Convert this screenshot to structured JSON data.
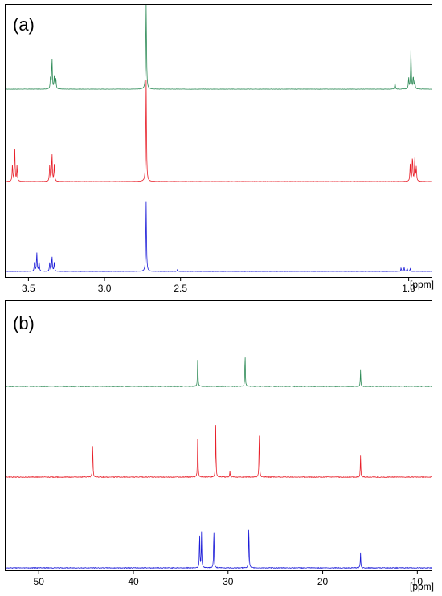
{
  "colors": {
    "green": "#2e8b57",
    "red": "#e8202a",
    "blue": "#1c1cd8",
    "frame": "#000000"
  },
  "chart_data": [
    {
      "type": "line",
      "panel": "(a)",
      "xunit": "[ppm]",
      "xlim": [
        3.65,
        0.85
      ],
      "x_reversed": true,
      "xticks": [
        3.5,
        3.0,
        2.5,
        1.0
      ],
      "xtick_labels": [
        "3.5",
        "3.0",
        "2.5",
        "1.0"
      ],
      "series": [
        {
          "color": "green",
          "peaks": [
            {
              "x": 3.345,
              "h": 0.55
            },
            {
              "x": 3.33,
              "h": 0.22
            },
            {
              "x": 3.32,
              "h": 0.2
            },
            {
              "x": 3.355,
              "h": 0.22
            },
            {
              "x": 2.726,
              "h": 1.7
            },
            {
              "x": 1.09,
              "h": 0.12
            },
            {
              "x": 0.985,
              "h": 0.7
            },
            {
              "x": 0.97,
              "h": 0.22
            },
            {
              "x": 1.0,
              "h": 0.2
            },
            {
              "x": 0.96,
              "h": 0.15
            }
          ]
        },
        {
          "color": "red",
          "peaks": [
            {
              "x": 3.59,
              "h": 0.6
            },
            {
              "x": 3.605,
              "h": 0.3
            },
            {
              "x": 3.575,
              "h": 0.28
            },
            {
              "x": 3.345,
              "h": 0.5
            },
            {
              "x": 3.33,
              "h": 0.3
            },
            {
              "x": 3.36,
              "h": 0.3
            },
            {
              "x": 2.726,
              "h": 1.8
            },
            {
              "x": 0.975,
              "h": 0.45
            },
            {
              "x": 0.96,
              "h": 0.4
            },
            {
              "x": 0.99,
              "h": 0.3
            },
            {
              "x": 0.95,
              "h": 0.25
            }
          ]
        },
        {
          "color": "blue",
          "peaks": [
            {
              "x": 3.445,
              "h": 0.33
            },
            {
              "x": 3.46,
              "h": 0.18
            },
            {
              "x": 3.43,
              "h": 0.18
            },
            {
              "x": 3.345,
              "h": 0.27
            },
            {
              "x": 3.33,
              "h": 0.16
            },
            {
              "x": 3.36,
              "h": 0.16
            },
            {
              "x": 2.726,
              "h": 1.25
            },
            {
              "x": 2.52,
              "h": 0.03
            },
            {
              "x": 1.05,
              "h": 0.06
            },
            {
              "x": 1.03,
              "h": 0.07
            },
            {
              "x": 1.01,
              "h": 0.06
            },
            {
              "x": 0.99,
              "h": 0.05
            }
          ]
        }
      ]
    },
    {
      "type": "line",
      "panel": "(b)",
      "xunit": "[ppm]",
      "xlim": [
        53.5,
        8.5
      ],
      "x_reversed": true,
      "xticks": [
        50,
        40,
        30,
        20,
        10
      ],
      "xtick_labels": [
        "50",
        "40",
        "30",
        "20",
        "10"
      ],
      "series": [
        {
          "color": "green",
          "peaks": [
            {
              "x": 33.2,
              "h": 0.38
            },
            {
              "x": 28.2,
              "h": 0.42
            },
            {
              "x": 16.0,
              "h": 0.2
            }
          ]
        },
        {
          "color": "red",
          "peaks": [
            {
              "x": 44.3,
              "h": 0.45
            },
            {
              "x": 33.2,
              "h": 0.56
            },
            {
              "x": 31.3,
              "h": 0.65
            },
            {
              "x": 29.8,
              "h": 0.08
            },
            {
              "x": 26.7,
              "h": 0.6
            },
            {
              "x": 16.0,
              "h": 0.27
            }
          ]
        },
        {
          "color": "blue",
          "peaks": [
            {
              "x": 33.0,
              "h": 0.46
            },
            {
              "x": 32.8,
              "h": 0.44
            },
            {
              "x": 31.5,
              "h": 0.52
            },
            {
              "x": 27.8,
              "h": 0.55
            },
            {
              "x": 16.0,
              "h": 0.19
            }
          ]
        }
      ]
    }
  ]
}
